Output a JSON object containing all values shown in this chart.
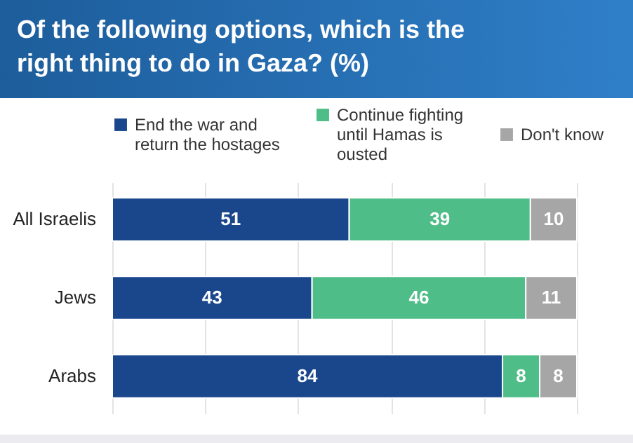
{
  "chart_data": {
    "type": "bar",
    "orientation": "horizontal",
    "stacked": true,
    "title": "Of the following options, which is the right thing to do in Gaza? (%)",
    "categories": [
      "All Israelis",
      "Jews",
      "Arabs"
    ],
    "series": [
      {
        "name": "End the war and return the hostages",
        "color": "#1a478c",
        "values": [
          51,
          43,
          84
        ]
      },
      {
        "name": "Continue fighting until Hamas is ousted",
        "color": "#4fbd87",
        "values": [
          39,
          46,
          8
        ]
      },
      {
        "name": "Don't know",
        "color": "#a6a6a6",
        "values": [
          10,
          11,
          8
        ]
      }
    ],
    "xlim": [
      0,
      100
    ],
    "xticks": [
      {
        "value": 0,
        "label": null
      },
      {
        "value": 20,
        "label": null
      },
      {
        "value": 40,
        "label": null
      },
      {
        "value": 60,
        "label": null
      },
      {
        "value": 80,
        "label": null
      },
      {
        "value": 100,
        "label": null
      }
    ],
    "tick_labels": "y",
    "grid": "x",
    "legend": "top",
    "data_labels": true
  }
}
